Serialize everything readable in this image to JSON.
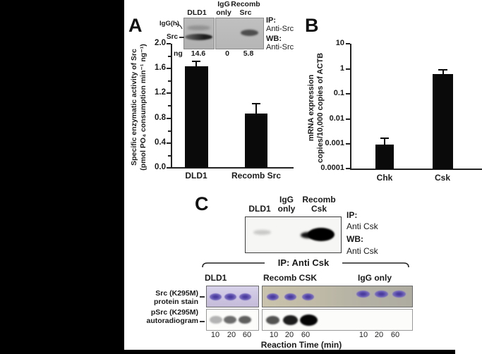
{
  "chart_data": [
    {
      "panel": "A",
      "type": "bar",
      "categories": [
        "DLD1",
        "Recomb Src"
      ],
      "values": [
        1.64,
        0.88
      ],
      "errors": [
        0.09,
        0.17
      ],
      "ylabel_line1": "Specific enzymatic activity of Src",
      "ylabel_line2": "(pmol PO₄ consumption min⁻¹ ng⁻¹)",
      "yticks": [
        "2.0",
        "1.6",
        "1.2",
        "0.8",
        "0.4",
        "0.0"
      ],
      "ylim": [
        0,
        2
      ],
      "y_scale": "linear",
      "grid": false,
      "legend": "none"
    },
    {
      "panel": "B",
      "type": "bar",
      "categories": [
        "Chk",
        "Csk"
      ],
      "values": [
        0.00095,
        0.62
      ],
      "errors_upper": [
        0.0018,
        0.95
      ],
      "ylabel_line1": "mRNA expression",
      "ylabel_line2": "copies/10,000 copies of ACTB",
      "yticks": [
        "10",
        "1",
        "0.1",
        "0.01",
        "0.001",
        "0.0001"
      ],
      "ylim": [
        0.0001,
        10
      ],
      "y_scale": "log",
      "grid": false,
      "legend": "none"
    }
  ],
  "panel_a": {
    "label": "A",
    "inset": {
      "lane1": "DLD1",
      "lane2_line1": "IgG",
      "lane2_line2": "only",
      "lane3_line1": "Recomb",
      "lane3_line2": "Src",
      "marker_top": "IgG(h)",
      "marker_bottom": "Src",
      "ip_label": "IP:",
      "ip_target": "Anti-Src",
      "wb_label": "WB:",
      "wb_target": "Anti-Src",
      "ng_label": "ng",
      "ng_values": [
        "14.6",
        "0",
        "5.8"
      ]
    }
  },
  "panel_b": {
    "label": "B"
  },
  "panel_c": {
    "label": "C",
    "blot": {
      "lane1": "DLD1",
      "lane2_line1": "IgG",
      "lane2_line2": "only",
      "lane3_line1": "Recomb",
      "lane3_line2": "Csk",
      "ip_label": "IP:",
      "ip_target": "Anti Csk",
      "wb_label": "WB:",
      "wb_target": "Anti Csk"
    },
    "bracket_label": "IP: Anti Csk",
    "groups": [
      "DLD1",
      "Recomb CSK",
      "IgG only"
    ],
    "row1_line1": "Src (K295M)",
    "row1_line2": "protein stain",
    "row2_line1": "pSrc (K295M)",
    "row2_line2": "autoradiogram",
    "time_labels": [
      "10",
      "20",
      "60"
    ],
    "time_axis_label": "Reaction Time (min)"
  }
}
